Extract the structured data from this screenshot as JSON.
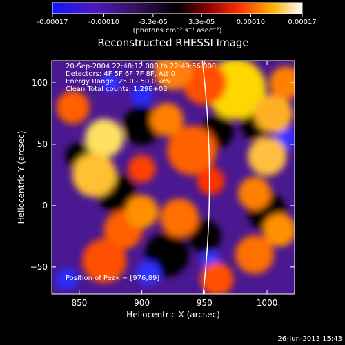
{
  "colorbar": {
    "tick_labels": [
      "-0.00017",
      "-0.00010",
      "-3.3e-05",
      "3.3e-05",
      "0.00010",
      "0.00017"
    ],
    "ticks": [
      -0.00017,
      -0.0001,
      -3.3e-05,
      3.3e-05,
      0.0001,
      0.00017
    ],
    "range": [
      -0.00017,
      0.00017
    ],
    "units": "(photons cm⁻² s⁻¹ asec⁻²)"
  },
  "plot": {
    "title": "Reconstructed RHESSI Image",
    "xlabel": "Heliocentric X (arcsec)",
    "ylabel": "Heliocentric Y (arcsec)",
    "xlim": [
      828,
      1022
    ],
    "ylim": [
      -72,
      118
    ],
    "x_ticks": [
      850,
      900,
      950,
      1000
    ],
    "y_ticks": [
      -50,
      0,
      50,
      100
    ],
    "x_tick_labels": [
      "850",
      "900",
      "950",
      "1000"
    ],
    "y_tick_labels": [
      "−50",
      "0",
      "50",
      "100"
    ],
    "annotation_lines": [
      "20-Sep-2004 22:48:12.000 to 22:49:56.000",
      "Detectors: 4F 5F 6F 7F 8F, Att 0",
      "Energy Range: 25.0 - 50.0 keV",
      "Clean    Total counts: 1.29E+03"
    ],
    "peak_text": "Position of Peak = [976,89]",
    "peak": [
      976,
      89
    ],
    "limb_color": "#ffffff"
  },
  "timestamp": "26-Jun-2013 15:43",
  "colormap": [
    "#1a1aff",
    "#5a1aa8",
    "#000000",
    "#8b0000",
    "#ff4500",
    "#ffd700",
    "#ffffff"
  ]
}
